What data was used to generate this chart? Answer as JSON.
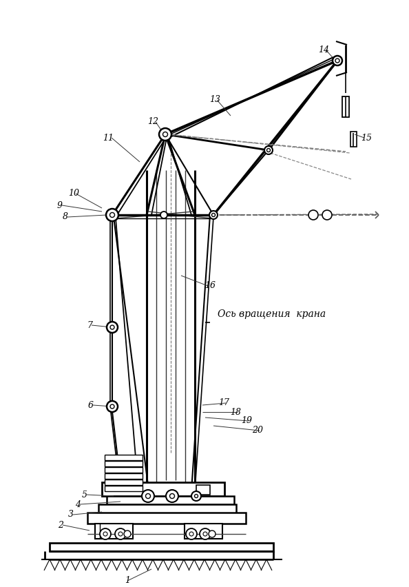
{
  "bg_color": "#ffffff",
  "line_color": "#000000",
  "text_color": "#000000",
  "axis_label": "Ось вращения  крана",
  "figsize": [
    5.94,
    8.52
  ],
  "dpi": 100
}
